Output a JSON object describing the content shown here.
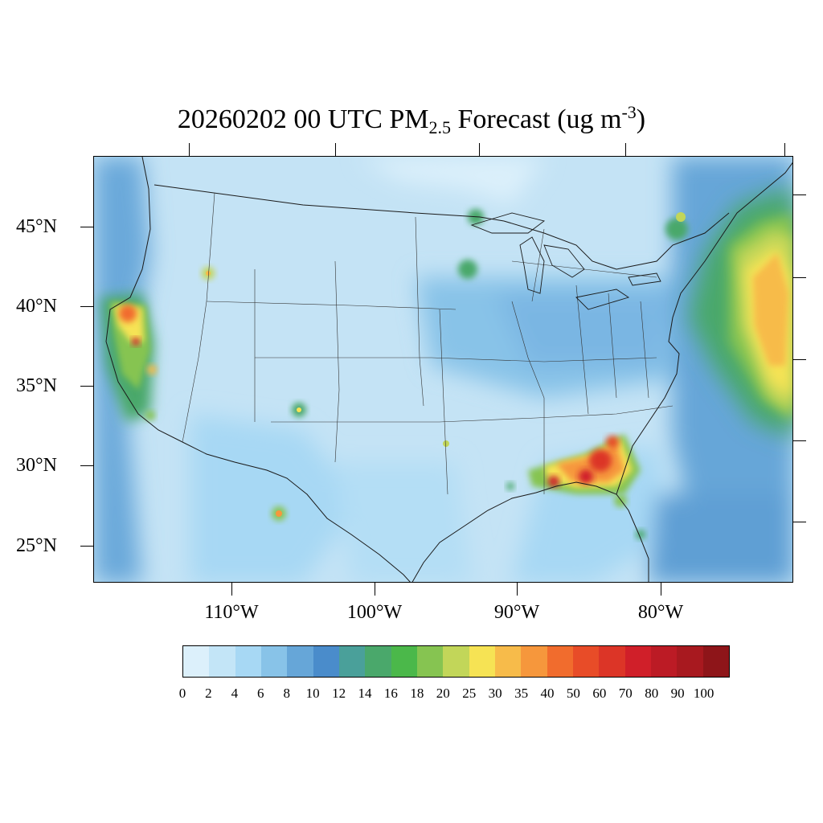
{
  "title": {
    "prefix": "20260202 00 UTC PM",
    "subscript": "2.5",
    "middle": " Forecast (ug m",
    "superscript": "-3",
    "suffix": ")"
  },
  "map": {
    "latitude_labels": [
      "45°N",
      "40°N",
      "35°N",
      "30°N",
      "25°N"
    ],
    "longitude_labels": [
      "110°W",
      "100°W",
      "90°W",
      "80°W"
    ],
    "background_color": "#c4e3f5",
    "land_border_color": "#1a1a1a"
  },
  "colorbar": {
    "labels": [
      "0",
      "2",
      "4",
      "6",
      "8",
      "10",
      "12",
      "14",
      "16",
      "18",
      "20",
      "25",
      "30",
      "35",
      "40",
      "50",
      "60",
      "70",
      "80",
      "90",
      "100"
    ],
    "colors": [
      "#dcf0fb",
      "#c3e5f7",
      "#a7d8f4",
      "#88c3e8",
      "#66a6d8",
      "#4a8ccb",
      "#4aa09a",
      "#4aa86b",
      "#4bb84a",
      "#86c451",
      "#c2d659",
      "#f6e354",
      "#f7bb4a",
      "#f6973c",
      "#f16c2d",
      "#e84c28",
      "#dc3527",
      "#d01f29",
      "#bc1b25",
      "#a8191f",
      "#8e1519"
    ]
  }
}
